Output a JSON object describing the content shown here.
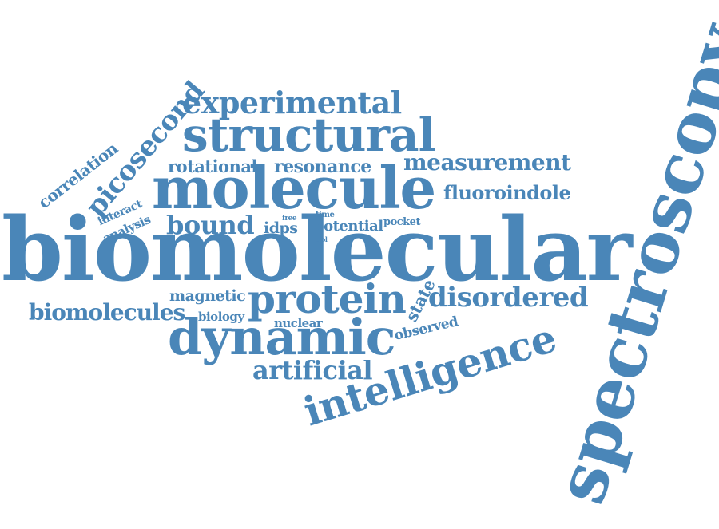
{
  "word_cloud": {
    "color": "#4a86b8",
    "words": [
      {
        "name": "word-spectroscopy",
        "text": "spectroscopy"
      },
      {
        "name": "word-biomolecular",
        "text": "biomolecular"
      },
      {
        "name": "word-molecule",
        "text": "molecule"
      },
      {
        "name": "word-structural",
        "text": "structural"
      },
      {
        "name": "word-dynamic",
        "text": "dynamic"
      },
      {
        "name": "word-intelligence",
        "text": "intelligence"
      },
      {
        "name": "word-protein",
        "text": "protein"
      },
      {
        "name": "word-experimental",
        "text": "experimental"
      },
      {
        "name": "word-disordered",
        "text": "disordered"
      },
      {
        "name": "word-artificial",
        "text": "artificial"
      },
      {
        "name": "word-measurement",
        "text": "measurement"
      },
      {
        "name": "word-biomolecules",
        "text": "biomolecules"
      },
      {
        "name": "word-bound",
        "text": "bound"
      },
      {
        "name": "word-picosecond",
        "text": "picosecond"
      },
      {
        "name": "word-fluoroindole",
        "text": "fluoroindole"
      },
      {
        "name": "word-resonance",
        "text": "resonance"
      },
      {
        "name": "word-rotational",
        "text": "rotational"
      },
      {
        "name": "word-correlation",
        "text": "correlation"
      },
      {
        "name": "word-magnetic",
        "text": "magnetic"
      },
      {
        "name": "word-potential",
        "text": "potential"
      },
      {
        "name": "word-state",
        "text": "state"
      },
      {
        "name": "word-observed",
        "text": "observed"
      },
      {
        "name": "word-nuclear",
        "text": "nuclear"
      },
      {
        "name": "word-biology",
        "text": "biology"
      },
      {
        "name": "word-idps",
        "text": "idps"
      },
      {
        "name": "word-interact",
        "text": "interact"
      },
      {
        "name": "word-analysis",
        "text": "analysis"
      },
      {
        "name": "word-pocket",
        "text": "pocket"
      },
      {
        "name": "word-free",
        "text": "free"
      },
      {
        "name": "word-time",
        "text": "time"
      },
      {
        "name": "word-tool",
        "text": "tool"
      }
    ]
  }
}
